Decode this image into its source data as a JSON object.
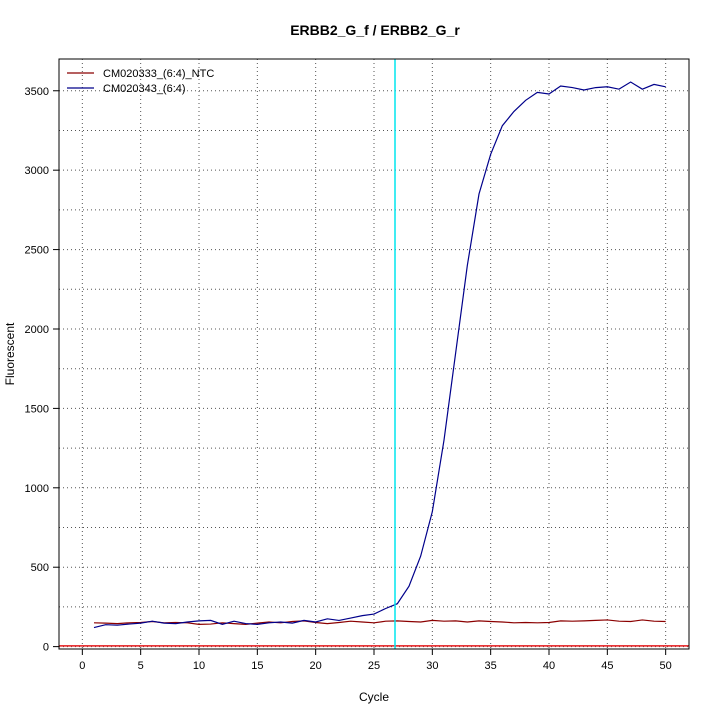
{
  "chart_data": {
    "type": "line",
    "title": "ERBB2_G_f / ERBB2_G_r",
    "xlabel": "Cycle",
    "ylabel": "Fluorescent",
    "xlim": [
      -2,
      52
    ],
    "ylim": [
      -15,
      3700
    ],
    "x_ticks": [
      "0",
      "5",
      "10",
      "15",
      "20",
      "25",
      "30",
      "35",
      "40",
      "45",
      "50"
    ],
    "y_ticks": [
      "0",
      "500",
      "1000",
      "1500",
      "2000",
      "2500",
      "3000",
      "3500"
    ],
    "grid": true,
    "legend_position": "top-left",
    "threshold": {
      "value": 5,
      "color": "#e41a1c"
    },
    "cycle_marker": {
      "x": 26.8,
      "color": "#00e5ee"
    },
    "x": [
      1,
      2,
      3,
      4,
      5,
      6,
      7,
      8,
      9,
      10,
      11,
      12,
      13,
      14,
      15,
      16,
      17,
      18,
      19,
      20,
      21,
      22,
      23,
      24,
      25,
      26,
      27,
      28,
      29,
      30,
      31,
      32,
      33,
      34,
      35,
      36,
      37,
      38,
      39,
      40,
      41,
      42,
      43,
      44,
      45,
      46,
      47,
      48,
      49,
      50
    ],
    "series": [
      {
        "name": "CM020333_(6:4)_NTC",
        "color": "#8b0000",
        "values": [
          150,
          148,
          145,
          150,
          152,
          158,
          150,
          152,
          150,
          140,
          142,
          150,
          145,
          140,
          148,
          155,
          150,
          158,
          162,
          152,
          145,
          152,
          160,
          155,
          150,
          160,
          162,
          158,
          155,
          165,
          160,
          162,
          155,
          162,
          158,
          155,
          150,
          152,
          150,
          152,
          162,
          160,
          162,
          165,
          168,
          160,
          158,
          168,
          160,
          158
        ]
      },
      {
        "name": "CM020343_(6:4)",
        "color": "#00008b",
        "values": [
          120,
          138,
          135,
          142,
          148,
          160,
          148,
          145,
          155,
          162,
          165,
          140,
          160,
          145,
          140,
          150,
          155,
          148,
          165,
          155,
          175,
          165,
          180,
          195,
          205,
          240,
          270,
          380,
          570,
          850,
          1300,
          1850,
          2400,
          2850,
          3100,
          3280,
          3370,
          3440,
          3490,
          3480,
          3530,
          3520,
          3505,
          3520,
          3525,
          3510,
          3555,
          3510,
          3540,
          3525
        ]
      }
    ]
  }
}
